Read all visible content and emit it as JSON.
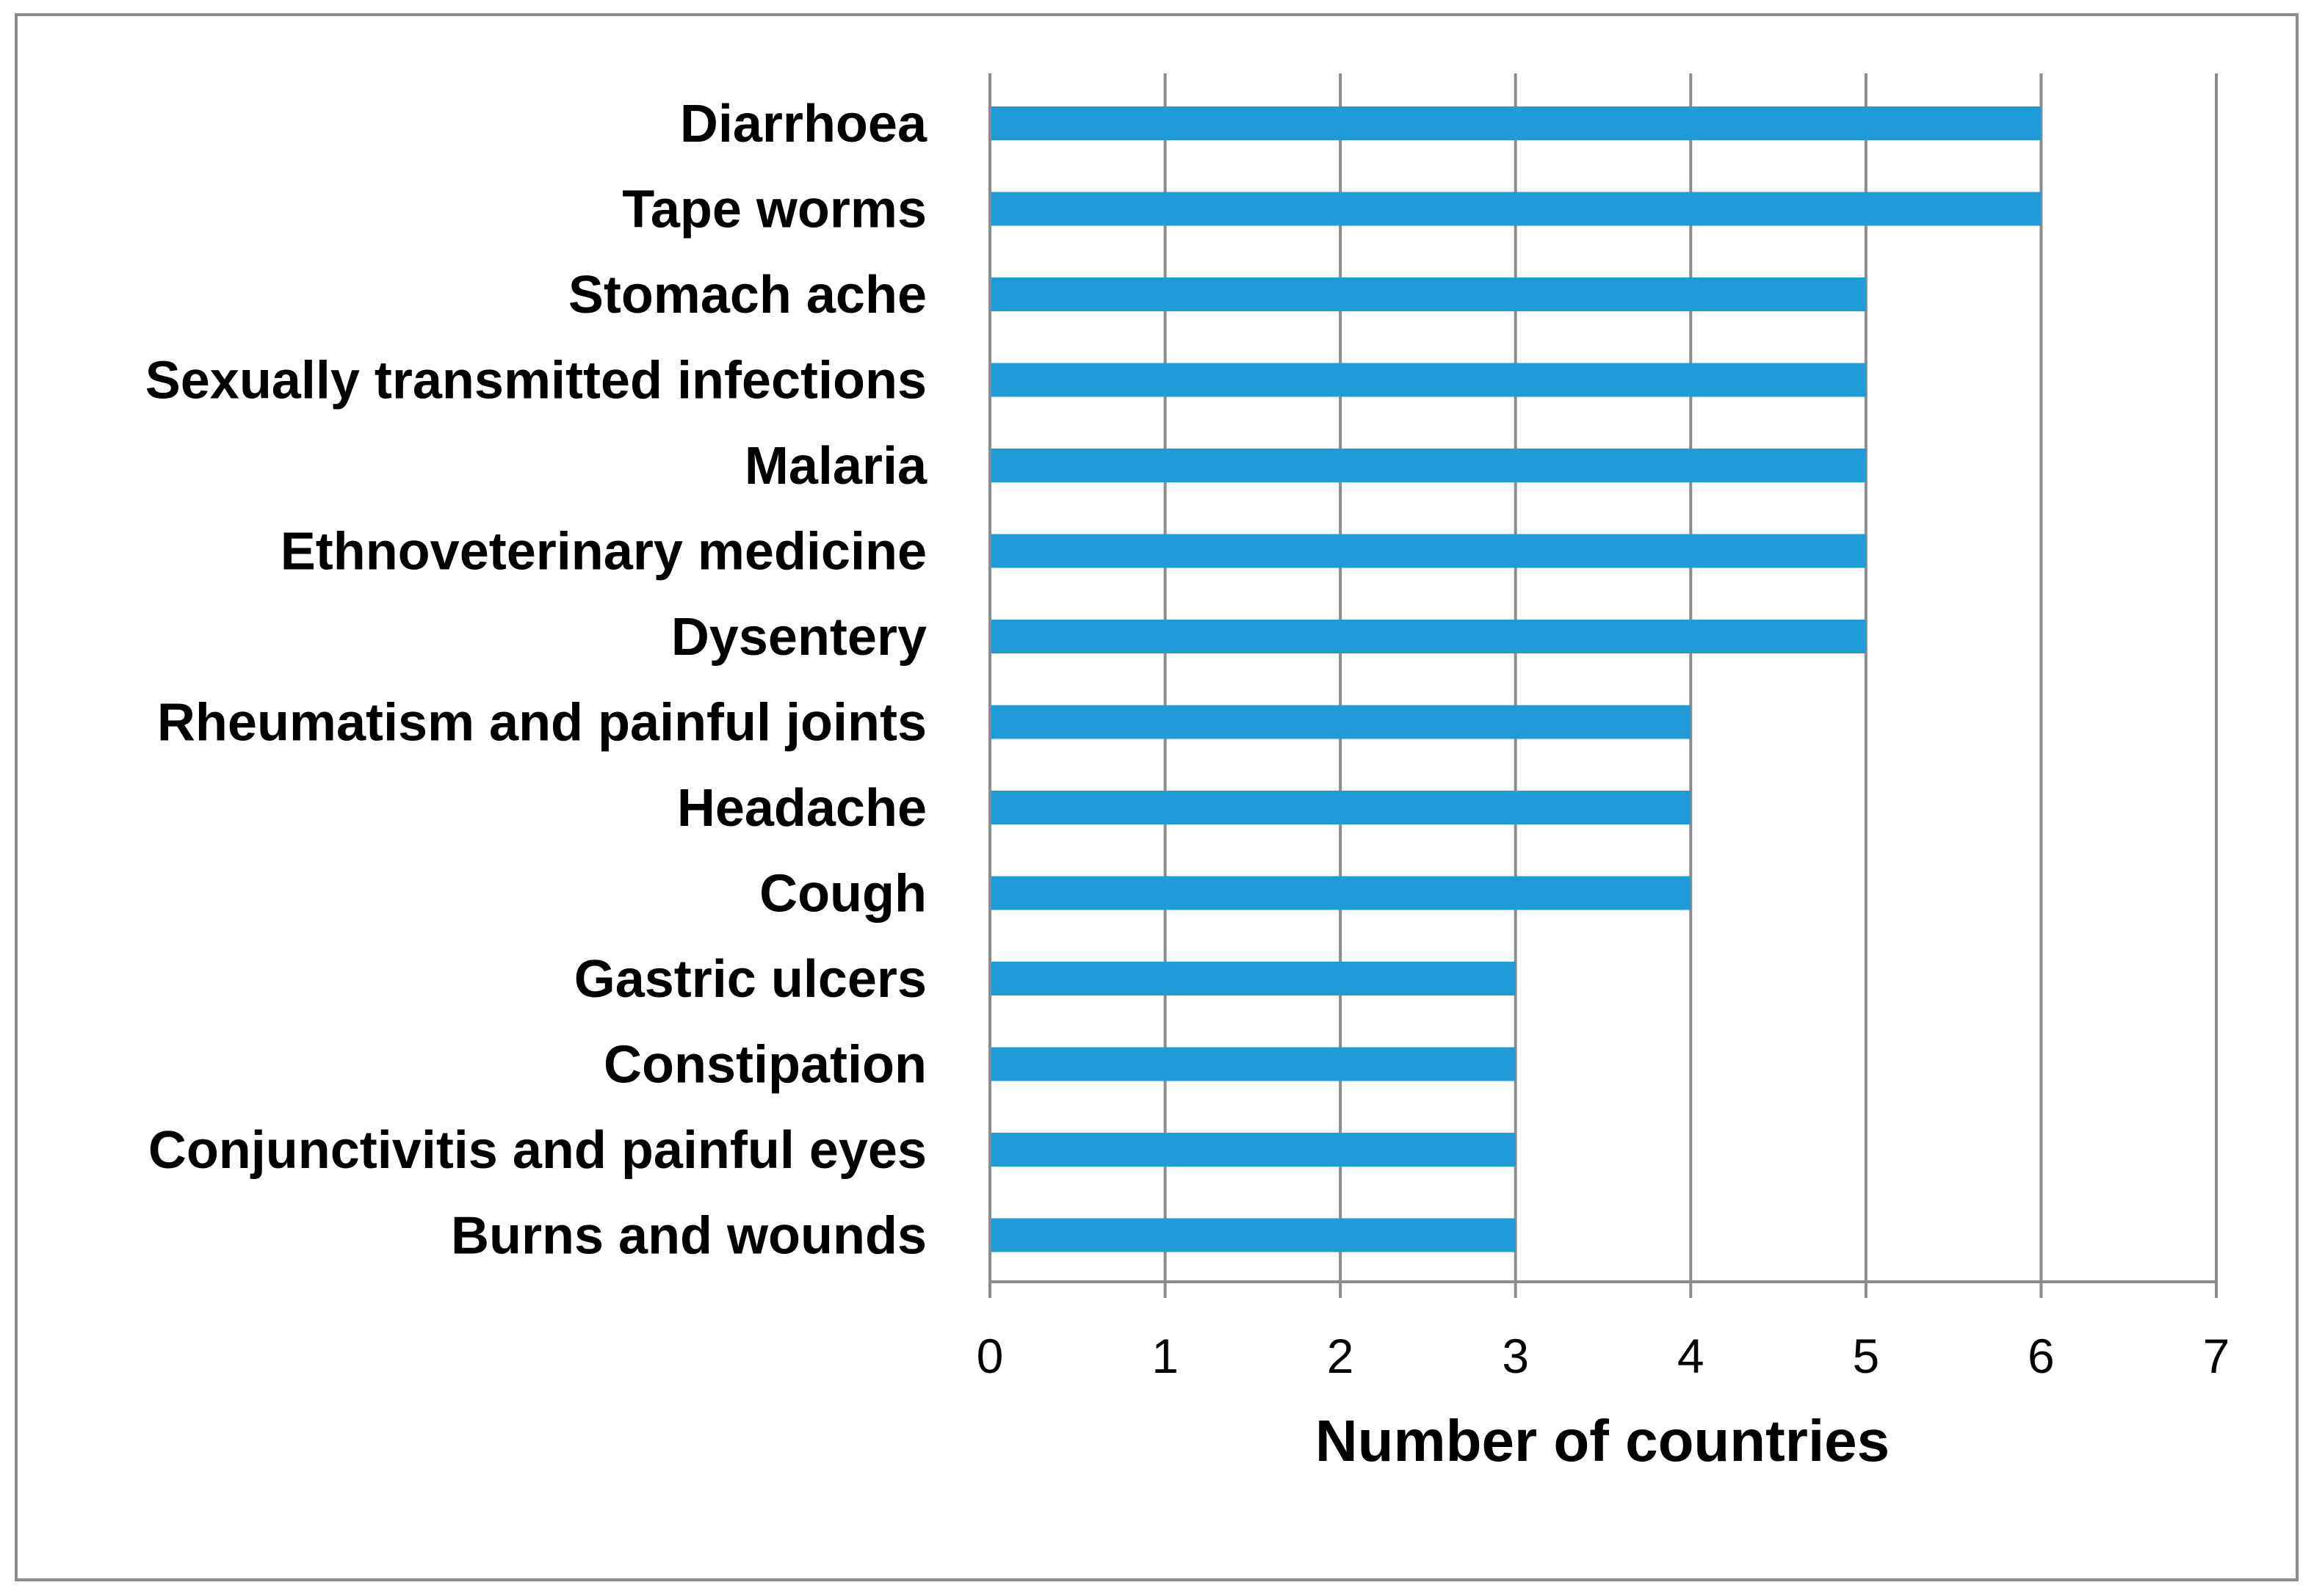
{
  "chart_data": {
    "type": "bar",
    "orientation": "horizontal",
    "categories": [
      "Diarrhoea",
      "Tape worms",
      "Stomach ache",
      "Sexually transmitted infections",
      "Malaria",
      "Ethnoveterinary medicine",
      "Dysentery",
      "Rheumatism and painful joints",
      "Headache",
      "Cough",
      "Gastric ulcers",
      "Constipation",
      "Conjunctivitis and painful eyes",
      "Burns and wounds"
    ],
    "values": [
      6,
      6,
      5,
      5,
      5,
      5,
      5,
      4,
      4,
      4,
      3,
      3,
      3,
      3
    ],
    "title": "",
    "xlabel": "Number of countries",
    "ylabel": "",
    "xlim": [
      0,
      7
    ],
    "x_ticks": [
      "0",
      "1",
      "2",
      "3",
      "4",
      "5",
      "6",
      "7"
    ],
    "grid": true,
    "legend": "none",
    "bar_color": "#1f9bd7",
    "grid_color": "#8c8c8c",
    "frame_color": "#8c8c8c"
  }
}
